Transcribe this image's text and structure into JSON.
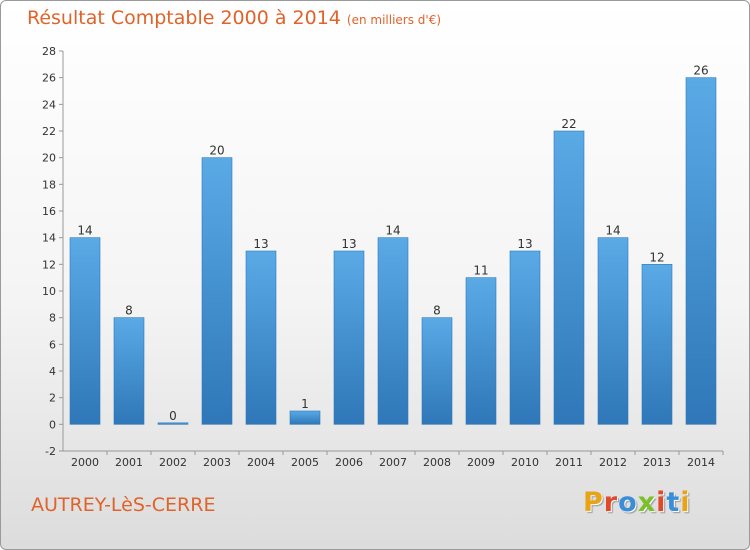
{
  "header": {
    "title": "Résultat Comptable 2000 à 2014",
    "unit_note": "(en milliers d'€)"
  },
  "footer": {
    "town_name": "AUTREY-LèS-CERRE",
    "logo_text": "Proxiti",
    "logo_colors": [
      "#e8a317",
      "#e04a2a",
      "#3a8ed8",
      "#7bbf2a",
      "#e04a2a",
      "#3a8ed8",
      "#e8a317"
    ]
  },
  "chart_data": {
    "type": "bar",
    "title": "Résultat Comptable 2000 à 2014",
    "subtitle": "(en milliers d'€)",
    "xlabel": "",
    "ylabel": "",
    "categories": [
      "2000",
      "2001",
      "2002",
      "2003",
      "2004",
      "2005",
      "2006",
      "2007",
      "2008",
      "2009",
      "2010",
      "2011",
      "2012",
      "2013",
      "2014"
    ],
    "values": [
      14,
      8,
      0,
      20,
      13,
      1,
      13,
      14,
      8,
      11,
      13,
      22,
      14,
      12,
      26
    ],
    "ylim": [
      -2,
      28
    ],
    "yticks": [
      -2,
      0,
      2,
      4,
      6,
      8,
      10,
      12,
      14,
      16,
      18,
      20,
      22,
      24,
      26,
      28
    ],
    "grid": false,
    "bar_color_light": "#5aaae6",
    "bar_color_dark": "#2f77b8",
    "axis_color": "#999999"
  }
}
